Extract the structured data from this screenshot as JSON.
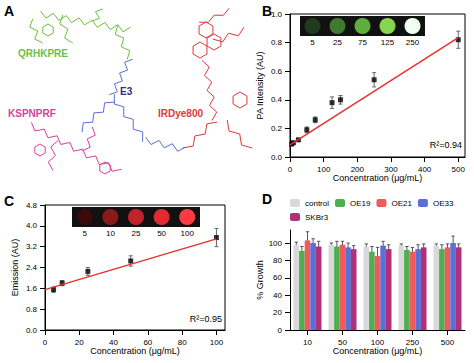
{
  "diagram": {
    "panel": "A",
    "labels": [
      {
        "text": "QRHKPRE",
        "color": "#6cbf3c"
      },
      {
        "text": "E3",
        "color": "#2e2e7a"
      },
      {
        "text": "KSPNPRF",
        "color": "#d63fa0"
      },
      {
        "text": "IRDye800",
        "color": "#e0383a"
      }
    ]
  },
  "chart_data": [
    {
      "type": "scatter",
      "panel": "B",
      "x_label": "Concentration (μg/mL)",
      "y_label": "PA Intensity (AU)",
      "x": [
        5,
        10,
        25,
        50,
        75,
        125,
        150,
        250,
        500
      ],
      "values": [
        0.09,
        0.1,
        0.12,
        0.19,
        0.26,
        0.38,
        0.4,
        0.54,
        0.82
      ],
      "errors": [
        0.01,
        0.01,
        0.01,
        0.02,
        0.02,
        0.04,
        0.03,
        0.05,
        0.06
      ],
      "color": "#000000",
      "marker": "square",
      "fit": {
        "x": [
          0,
          500
        ],
        "values": [
          0.085,
          0.835
        ],
        "color": "#e8312f"
      },
      "annotation": "R²=0.94",
      "inset": {
        "labels": [
          5,
          25,
          75,
          125,
          250
        ],
        "colors": [
          "#1f3a1f",
          "#3f7a2f",
          "#5fae3c",
          "#86d54f",
          "#f0fff0"
        ]
      },
      "xlim": [
        0,
        520
      ],
      "xticks": [
        0,
        100,
        200,
        300,
        400,
        500
      ],
      "ylim": [
        0,
        1.0
      ],
      "yticks": [
        {
          "value": 0,
          "label": "0.0"
        },
        0.2,
        0.4,
        0.6,
        0.8,
        {
          "value": 1.0,
          "label": "1.0"
        }
      ],
      "grid": false
    },
    {
      "type": "scatter",
      "panel": "C",
      "x_label": "Concentration (μg/mL)",
      "y_label": "Emission (AU)",
      "x": [
        5,
        10,
        25,
        50,
        100
      ],
      "values": [
        1.55,
        1.8,
        2.25,
        2.65,
        3.55
      ],
      "errors": [
        0.1,
        0.1,
        0.15,
        0.2,
        0.35
      ],
      "color": "#000000",
      "marker": "square",
      "fit": {
        "x": [
          0,
          100
        ],
        "values": [
          1.55,
          3.5
        ],
        "color": "#e8312f"
      },
      "annotation": "R²=0.95",
      "inset": {
        "labels": [
          5,
          10,
          25,
          50,
          100
        ],
        "colors": [
          "#3a0a0a",
          "#8a1a1a",
          "#c0242a",
          "#e02a30",
          "#ff3a40"
        ]
      },
      "xlim": [
        0,
        105
      ],
      "xticks": [
        0,
        20,
        40,
        60,
        80,
        100
      ],
      "ylim": [
        0,
        4.8
      ],
      "yticks": [
        {
          "value": 0,
          "label": "0.0"
        },
        0.8,
        1.6,
        2.4,
        3.2,
        {
          "value": 4,
          "label": "4.0"
        },
        4.8
      ],
      "grid": false
    },
    {
      "type": "bar",
      "panel": "D",
      "x_label": "Concentration (μg/mL)",
      "y_label": "% Growth",
      "categories": [
        "10",
        "50",
        "100",
        "250",
        "500"
      ],
      "series": [
        {
          "name": "control",
          "color": "#d9d9d9",
          "values": [
            98,
            98,
            96,
            97,
            97
          ],
          "errors": [
            3,
            2,
            3,
            2,
            2
          ]
        },
        {
          "name": "OE19",
          "color": "#4caf50",
          "values": [
            91,
            96,
            90,
            92,
            93
          ],
          "errors": [
            5,
            6,
            6,
            4,
            5
          ]
        },
        {
          "name": "OE21",
          "color": "#ef5a5a",
          "values": [
            103,
            98,
            85,
            90,
            95
          ],
          "errors": [
            10,
            4,
            10,
            5,
            4
          ]
        },
        {
          "name": "OE33",
          "color": "#5b6fd6",
          "values": [
            100,
            95,
            97,
            93,
            100
          ],
          "errors": [
            5,
            5,
            5,
            5,
            8
          ]
        },
        {
          "name": "SKBr3",
          "color": "#b0307a",
          "values": [
            96,
            93,
            93,
            95,
            95
          ],
          "errors": [
            6,
            4,
            5,
            4,
            4
          ]
        }
      ],
      "ylim": [
        0,
        115
      ],
      "yticks": [
        0,
        20,
        40,
        60,
        80,
        100
      ],
      "legend": "top",
      "grid": false
    }
  ]
}
